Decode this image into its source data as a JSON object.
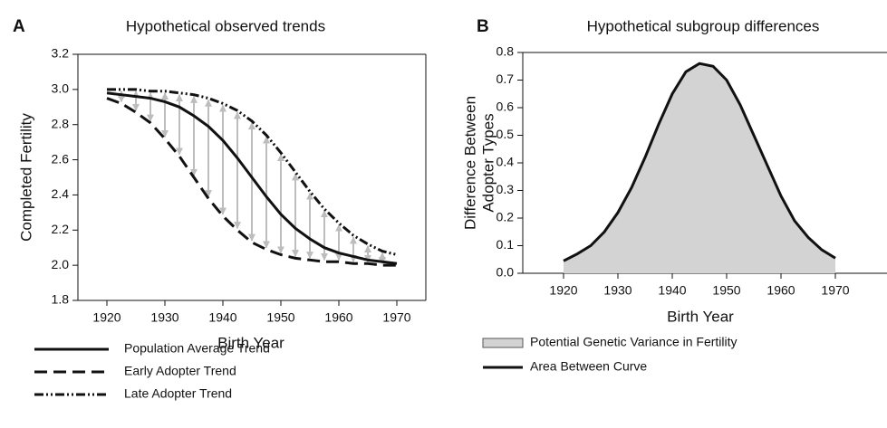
{
  "chart_data": [
    {
      "type": "line",
      "panel": "A",
      "title": "Hypothetical observed trends",
      "x_label": "Birth Year",
      "y_label": "Completed Fertility",
      "x": [
        1920,
        1922.5,
        1925,
        1927.5,
        1930,
        1932.5,
        1935,
        1937.5,
        1940,
        1942.5,
        1945,
        1947.5,
        1950,
        1952.5,
        1955,
        1957.5,
        1960,
        1962.5,
        1965,
        1967.5,
        1970
      ],
      "series": [
        {
          "name": "Population Average Trend",
          "color": "#111111",
          "dash": "solid",
          "values": [
            2.98,
            2.97,
            2.96,
            2.95,
            2.93,
            2.9,
            2.85,
            2.79,
            2.71,
            2.61,
            2.5,
            2.39,
            2.29,
            2.21,
            2.15,
            2.1,
            2.07,
            2.05,
            2.03,
            2.02,
            2.01
          ]
        },
        {
          "name": "Early Adopter Trend",
          "color": "#111111",
          "dash": "dashed",
          "values": [
            2.95,
            2.92,
            2.87,
            2.81,
            2.72,
            2.62,
            2.5,
            2.38,
            2.28,
            2.2,
            2.13,
            2.09,
            2.06,
            2.04,
            2.03,
            2.02,
            2.02,
            2.01,
            2.01,
            2.0,
            2.0
          ]
        },
        {
          "name": "Late Adopter Trend",
          "color": "#111111",
          "dash": "dash-dot-dot",
          "values": [
            3.0,
            3.0,
            3.0,
            2.99,
            2.99,
            2.98,
            2.97,
            2.95,
            2.92,
            2.88,
            2.82,
            2.74,
            2.64,
            2.53,
            2.42,
            2.32,
            2.24,
            2.17,
            2.12,
            2.08,
            2.06
          ]
        }
      ],
      "arrow_color": "#bdbdbd",
      "xlim": [
        1915,
        1975
      ],
      "xticks": [
        1920,
        1930,
        1940,
        1950,
        1960,
        1970
      ],
      "ylim": [
        1.8,
        3.2
      ],
      "yticks": [
        1.8,
        {
          "value": 2.0,
          "label": "2.0"
        },
        2.2,
        2.4,
        2.6,
        2.8,
        {
          "value": 3.0,
          "label": "3.0"
        },
        3.2
      ],
      "grid": false
    },
    {
      "type": "area",
      "panel": "B",
      "title": "Hypothetical subgroup differences",
      "x_label": "Birth Year",
      "y_label": [
        "Difference Between",
        "Adopter Types"
      ],
      "x": [
        1920,
        1922.5,
        1925,
        1927.5,
        1930,
        1932.5,
        1935,
        1937.5,
        1940,
        1942.5,
        1945,
        1947.5,
        1950,
        1952.5,
        1955,
        1957.5,
        1960,
        1962.5,
        1965,
        1967.5,
        1970
      ],
      "series": [
        {
          "name": "Potential Genetic Variance in Fertility",
          "color": "#d3d3d3",
          "outline_name": "Area Between Curve",
          "outline_color": "#111111",
          "values": [
            0.045,
            0.07,
            0.1,
            0.15,
            0.22,
            0.31,
            0.42,
            0.54,
            0.65,
            0.73,
            0.76,
            0.75,
            0.7,
            0.61,
            0.5,
            0.39,
            0.28,
            0.19,
            0.13,
            0.085,
            0.055
          ]
        }
      ],
      "xlim": [
        1912.5,
        1979.5
      ],
      "xticks": [
        1920,
        1930,
        1940,
        1950,
        1960,
        1970
      ],
      "ylim": [
        0,
        0.8
      ],
      "yticks": [
        {
          "value": 0,
          "label": "0.0"
        },
        0.1,
        0.2,
        0.3,
        0.4,
        0.5,
        0.6,
        0.7,
        0.8
      ],
      "grid": false
    }
  ]
}
